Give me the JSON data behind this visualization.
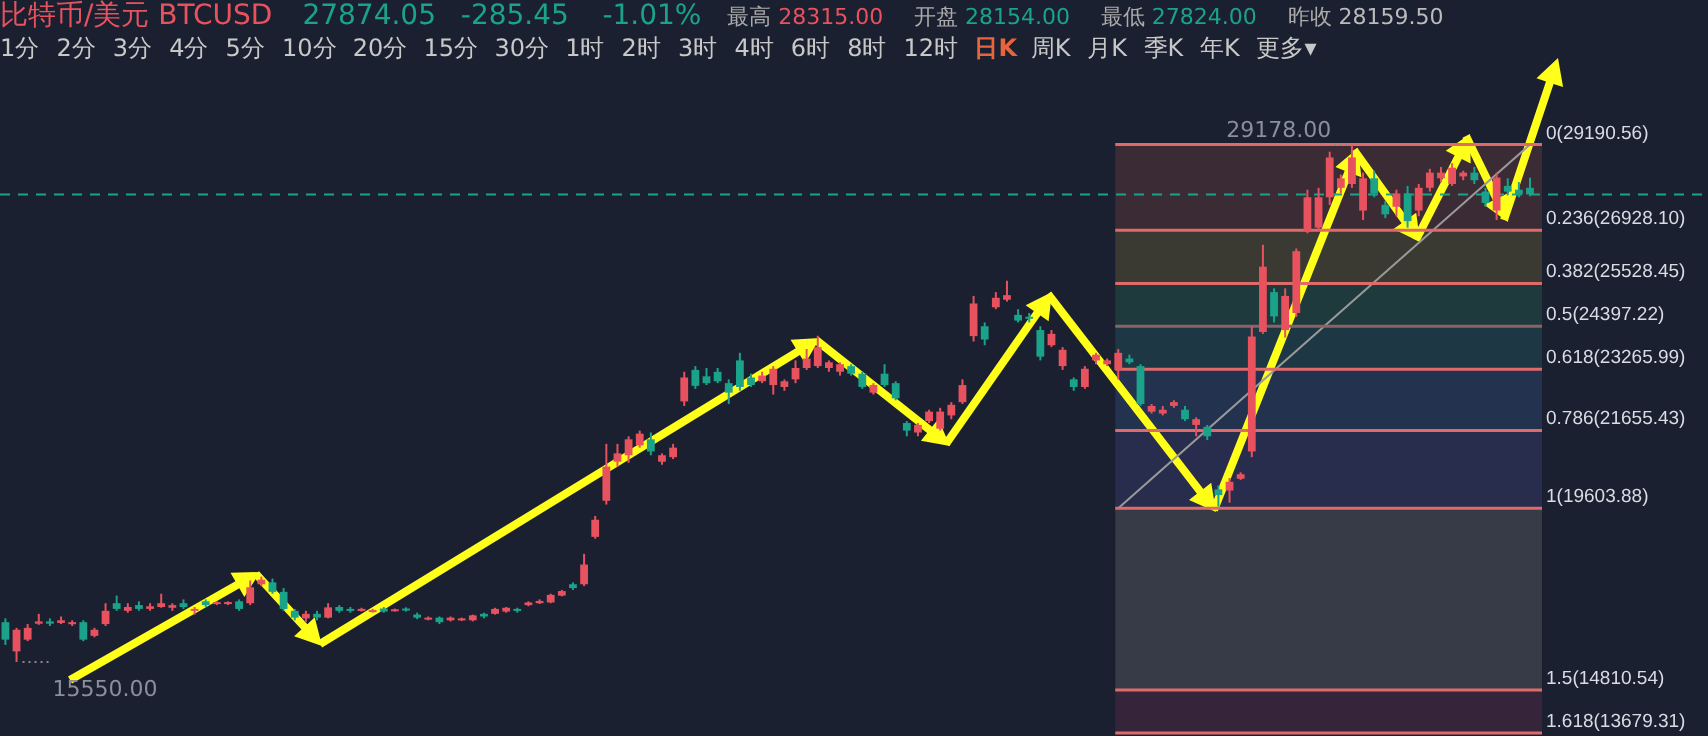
{
  "chart_data": {
    "type": "candlestick",
    "title": "比特币/美元 BTCUSD",
    "categories": [
      null,
      null,
      null,
      null,
      null,
      null,
      null,
      null,
      null,
      null,
      null,
      null,
      null,
      null,
      null,
      null,
      null,
      null,
      null,
      null,
      null,
      null,
      null,
      null,
      null,
      null,
      null,
      null,
      null,
      null,
      null,
      null,
      null,
      null,
      null,
      null,
      null,
      null,
      null,
      null,
      null,
      null,
      null,
      null,
      null,
      null,
      null,
      null,
      null,
      null,
      null,
      null,
      null,
      null,
      null,
      null,
      null,
      null,
      null,
      null,
      null,
      null,
      null,
      null,
      null,
      null,
      null,
      null,
      null,
      null,
      null,
      null,
      null,
      null,
      null,
      null,
      null,
      null,
      null,
      null,
      null,
      null,
      null,
      null,
      null,
      null,
      null,
      null,
      null,
      null,
      null,
      null,
      null,
      null,
      null,
      null,
      null,
      null,
      null,
      null,
      null,
      null,
      null,
      null,
      null,
      null,
      null,
      null,
      null,
      null,
      null,
      null,
      null,
      null,
      null,
      null,
      null,
      null,
      null,
      null,
      null,
      null,
      null,
      null,
      null,
      null,
      null,
      null,
      null,
      null,
      null,
      null,
      null,
      null,
      null,
      null,
      null,
      null
    ],
    "ohlc": [
      [
        16600,
        16700,
        16000,
        16140
      ],
      [
        15830,
        16450,
        15550,
        16400
      ],
      [
        16140,
        16550,
        16100,
        16450
      ],
      [
        16560,
        16820,
        16530,
        16620
      ],
      [
        16620,
        16700,
        16500,
        16560
      ],
      [
        16580,
        16750,
        16550,
        16650
      ],
      [
        16560,
        16650,
        16500,
        16600
      ],
      [
        16600,
        16650,
        16100,
        16140
      ],
      [
        16240,
        16450,
        16200,
        16400
      ],
      [
        16550,
        17100,
        16500,
        16900
      ],
      [
        17100,
        17300,
        16900,
        16950
      ],
      [
        16900,
        17100,
        16850,
        17000
      ],
      [
        17050,
        17150,
        16900,
        16950
      ],
      [
        16950,
        17100,
        16900,
        17020
      ],
      [
        17000,
        17350,
        16980,
        17100
      ],
      [
        16980,
        17100,
        16900,
        17050
      ],
      [
        17100,
        17200,
        16950,
        17000
      ],
      [
        16900,
        17000,
        16800,
        16950
      ],
      [
        17150,
        17200,
        17000,
        17050
      ],
      [
        17080,
        17150,
        17050,
        17130
      ],
      [
        17080,
        17150,
        17050,
        17130
      ],
      [
        17150,
        17200,
        16900,
        16950
      ],
      [
        17100,
        17700,
        17050,
        17520
      ],
      [
        17600,
        17800,
        17550,
        17720
      ],
      [
        17650,
        17750,
        17350,
        17400
      ],
      [
        17400,
        17500,
        16900,
        16950
      ],
      [
        16900,
        16950,
        16650,
        16720
      ],
      [
        16700,
        16900,
        16600,
        16820
      ],
      [
        16820,
        16900,
        16650,
        16720
      ],
      [
        16720,
        17100,
        16700,
        16990
      ],
      [
        17000,
        17050,
        16850,
        16900
      ],
      [
        16950,
        17000,
        16850,
        16900
      ],
      [
        16900,
        16980,
        16880,
        16950
      ],
      [
        16880,
        16950,
        16850,
        16920
      ],
      [
        16960,
        17000,
        16850,
        16880
      ],
      [
        16900,
        16960,
        16880,
        16940
      ],
      [
        16960,
        16990,
        16880,
        16920
      ],
      [
        16800,
        16850,
        16680,
        16720
      ],
      [
        16680,
        16750,
        16650,
        16720
      ],
      [
        16720,
        16750,
        16550,
        16600
      ],
      [
        16650,
        16750,
        16620,
        16720
      ],
      [
        16650,
        16720,
        16630,
        16700
      ],
      [
        16650,
        16800,
        16620,
        16780
      ],
      [
        16820,
        16850,
        16700,
        16750
      ],
      [
        16820,
        16980,
        16800,
        16950
      ],
      [
        16880,
        17000,
        16850,
        16980
      ],
      [
        16950,
        16980,
        16850,
        16900
      ],
      [
        17050,
        17150,
        17020,
        17120
      ],
      [
        17100,
        17200,
        17080,
        17160
      ],
      [
        17120,
        17350,
        17100,
        17320
      ],
      [
        17300,
        17450,
        17280,
        17420
      ],
      [
        17600,
        17650,
        17450,
        17500
      ],
      [
        17600,
        18400,
        17550,
        18120
      ],
      [
        18850,
        19400,
        18800,
        19300
      ],
      [
        19800,
        21300,
        19700,
        20700
      ],
      [
        20830,
        21300,
        20700,
        21050
      ],
      [
        21000,
        21500,
        20800,
        21420
      ],
      [
        21260,
        21650,
        21200,
        21570
      ],
      [
        21420,
        21600,
        21000,
        21100
      ],
      [
        20830,
        21050,
        20750,
        21000
      ],
      [
        20950,
        21300,
        20900,
        21200
      ],
      [
        22420,
        23200,
        22300,
        23050
      ],
      [
        23250,
        23350,
        22750,
        22830
      ],
      [
        23080,
        23300,
        22850,
        22900
      ],
      [
        23200,
        23300,
        22900,
        22950
      ],
      [
        22900,
        23000,
        22350,
        22650
      ],
      [
        23500,
        23700,
        22700,
        22800
      ],
      [
        23050,
        23150,
        22800,
        22850
      ],
      [
        22950,
        23200,
        22900,
        23100
      ],
      [
        22850,
        23350,
        22600,
        23280
      ],
      [
        22800,
        23000,
        22700,
        22950
      ],
      [
        23000,
        23500,
        22900,
        23300
      ],
      [
        23300,
        23800,
        23250,
        23550
      ],
      [
        23350,
        24150,
        23300,
        23850
      ],
      [
        23300,
        23500,
        23200,
        23450
      ],
      [
        23200,
        23450,
        23100,
        23400
      ],
      [
        23350,
        23400,
        23100,
        23150
      ],
      [
        23150,
        23200,
        22750,
        22800
      ],
      [
        22650,
        22900,
        22600,
        22850
      ],
      [
        23150,
        23400,
        22800,
        22850
      ],
      [
        22900,
        22950,
        22450,
        22500
      ],
      [
        21850,
        21900,
        21500,
        21650
      ],
      [
        21600,
        21850,
        21500,
        21800
      ],
      [
        21900,
        22200,
        21850,
        22150
      ],
      [
        21700,
        22250,
        21650,
        22150
      ],
      [
        22050,
        22400,
        21950,
        22330
      ],
      [
        22400,
        23000,
        22350,
        22850
      ],
      [
        24140,
        25200,
        24000,
        25000
      ],
      [
        24400,
        24500,
        23900,
        24050
      ],
      [
        24900,
        25300,
        24850,
        25150
      ],
      [
        25100,
        25600,
        25050,
        25220
      ],
      [
        24700,
        24850,
        24500,
        24550
      ],
      [
        24650,
        24750,
        24500,
        24600
      ],
      [
        24300,
        24400,
        23500,
        23600
      ],
      [
        23900,
        24300,
        23850,
        24200
      ],
      [
        23350,
        23850,
        23250,
        23780
      ],
      [
        23000,
        23050,
        22700,
        22800
      ],
      [
        22800,
        23350,
        22750,
        23280
      ],
      [
        23500,
        23700,
        23400,
        23650
      ],
      [
        23400,
        23550,
        23350,
        23500
      ],
      [
        23250,
        23800,
        23000,
        23700
      ],
      [
        23550,
        23650,
        23400,
        23450
      ],
      [
        23350,
        23400,
        22300,
        22350
      ],
      [
        22150,
        22350,
        22100,
        22300
      ],
      [
        22100,
        22300,
        22050,
        22200
      ],
      [
        22300,
        22450,
        22250,
        22400
      ],
      [
        22200,
        22300,
        21900,
        21950
      ],
      [
        21800,
        22000,
        21500,
        21950
      ],
      [
        21750,
        21800,
        21400,
        21500
      ],
      [
        20100,
        20200,
        19650,
        19950
      ],
      [
        20070,
        20400,
        19750,
        20300
      ],
      [
        20380,
        20550,
        20350,
        20500
      ],
      [
        21100,
        24400,
        20950,
        24130
      ],
      [
        24250,
        26550,
        24200,
        25970
      ],
      [
        25300,
        25400,
        24500,
        24660
      ],
      [
        24300,
        25400,
        24100,
        25200
      ],
      [
        24750,
        26450,
        24650,
        26380
      ],
      [
        26900,
        28000,
        26850,
        27800
      ],
      [
        27000,
        28050,
        26900,
        27800
      ],
      [
        27800,
        29000,
        27600,
        28850
      ],
      [
        28050,
        28400,
        27900,
        28300
      ],
      [
        28150,
        29178,
        28050,
        28850
      ],
      [
        27450,
        28450,
        27200,
        28300
      ],
      [
        28300,
        28500,
        27800,
        27900
      ],
      [
        27600,
        27700,
        27250,
        27350
      ],
      [
        27550,
        28000,
        27300,
        27900
      ],
      [
        27900,
        28100,
        27000,
        27170
      ],
      [
        27450,
        28150,
        27300,
        28050
      ],
      [
        28050,
        28550,
        27950,
        28450
      ],
      [
        28300,
        28600,
        28200,
        28450
      ],
      [
        28150,
        28700,
        28100,
        28580
      ],
      [
        28350,
        28500,
        28250,
        28450
      ],
      [
        28450,
        28600,
        28150,
        28250
      ],
      [
        27950,
        28050,
        27550,
        27650
      ],
      [
        27450,
        28450,
        27200,
        28320
      ],
      [
        28100,
        28300,
        27850,
        27950
      ],
      [
        28000,
        28200,
        27800,
        27880
      ],
      [
        28050,
        28315,
        27824,
        27874.05
      ]
    ],
    "colors": [
      "#1aa38a",
      "#e8525f",
      "#e8525f",
      "#e8525f",
      "#1aa38a",
      "#e8525f",
      "#e8525f",
      "#1aa38a",
      "#e8525f",
      "#e8525f",
      "#1aa38a",
      "#e8525f",
      "#1aa38a",
      "#e8525f",
      "#e8525f",
      "#e8525f",
      "#1aa38a",
      "#e8525f",
      "#1aa38a",
      "#e8525f",
      "#e8525f",
      "#1aa38a",
      "#e8525f",
      "#e8525f",
      "#1aa38a",
      "#1aa38a",
      "#1aa38a",
      "#e8525f",
      "#1aa38a",
      "#e8525f",
      "#1aa38a",
      "#1aa38a",
      "#e8525f",
      "#e8525f",
      "#1aa38a",
      "#e8525f",
      "#1aa38a",
      "#1aa38a",
      "#e8525f",
      "#1aa38a",
      "#e8525f",
      "#e8525f",
      "#e8525f",
      "#1aa38a",
      "#e8525f",
      "#e8525f",
      "#1aa38a",
      "#e8525f",
      "#e8525f",
      "#e8525f",
      "#e8525f",
      "#1aa38a",
      "#e8525f",
      "#e8525f",
      "#e8525f",
      "#e8525f",
      "#e8525f",
      "#e8525f",
      "#1aa38a",
      "#e8525f",
      "#e8525f",
      "#e8525f",
      "#1aa38a",
      "#1aa38a",
      "#1aa38a",
      "#1aa38a",
      "#1aa38a",
      "#1aa38a",
      "#e8525f",
      "#e8525f",
      "#e8525f",
      "#e8525f",
      "#e8525f",
      "#e8525f",
      "#e8525f",
      "#e8525f",
      "#1aa38a",
      "#1aa38a",
      "#e8525f",
      "#1aa38a",
      "#1aa38a",
      "#1aa38a",
      "#e8525f",
      "#e8525f",
      "#e8525f",
      "#e8525f",
      "#e8525f",
      "#e8525f",
      "#1aa38a",
      "#e8525f",
      "#e8525f",
      "#1aa38a",
      "#1aa38a",
      "#1aa38a",
      "#e8525f",
      "#e8525f",
      "#1aa38a",
      "#e8525f",
      "#e8525f",
      "#e8525f",
      "#e8525f",
      "#1aa38a",
      "#1aa38a",
      "#e8525f",
      "#e8525f",
      "#e8525f",
      "#1aa38a",
      "#e8525f",
      "#1aa38a",
      "#1aa38a",
      "#e8525f",
      "#e8525f",
      "#e8525f",
      "#e8525f",
      "#1aa38a",
      "#e8525f",
      "#e8525f",
      "#e8525f",
      "#e8525f",
      "#e8525f",
      "#e8525f",
      "#e8525f",
      "#e8525f",
      "#1aa38a",
      "#1aa38a",
      "#e8525f",
      "#1aa38a",
      "#e8525f",
      "#e8525f",
      "#e8525f",
      "#e8525f",
      "#e8525f",
      "#1aa38a",
      "#1aa38a",
      "#e8525f",
      "#1aa38a",
      "#1aa38a",
      "#1aa38a"
    ],
    "series": [
      {
        "type": "line",
        "color": "#9a9a9a",
        "values": [
          null,
          null,
          null,
          null,
          null,
          null,
          null,
          null,
          null,
          null,
          null,
          null,
          null,
          null,
          null,
          null,
          null,
          null,
          null,
          null,
          null,
          null,
          null,
          null,
          null,
          null,
          null,
          null,
          null,
          null,
          null,
          null,
          null,
          null,
          null,
          null,
          null,
          null,
          null,
          null,
          null,
          null,
          null,
          null,
          null,
          null,
          null,
          null,
          null,
          null,
          null,
          null,
          null,
          null,
          null,
          null,
          null,
          null,
          null,
          null,
          null,
          null,
          null,
          null,
          null,
          null,
          null,
          null,
          null,
          null,
          null,
          null,
          null,
          null,
          null,
          null,
          null,
          null,
          null,
          null,
          null,
          null,
          null,
          null,
          null,
          null,
          null,
          null,
          null,
          null,
          null,
          null,
          null,
          null,
          null,
          null,
          null,
          null,
          null,
          null,
          19603.88,
          null,
          null,
          null,
          null,
          null,
          null,
          null,
          null,
          null,
          null,
          null,
          null,
          null,
          null,
          null,
          null,
          null,
          null,
          null,
          null,
          null,
          null,
          null,
          null,
          null,
          null,
          null,
          null,
          null,
          null,
          null,
          null,
          null,
          null,
          null,
          null,
          29190.56
        ]
      }
    ],
    "ylim": [
      13600,
      33000
    ],
    "bands": [
      {
        "axis": "y",
        "from": 29190.56,
        "to": 26928.1,
        "color": "#3a2b34"
      },
      {
        "axis": "y",
        "from": 26928.1,
        "to": 25528.45,
        "color": "#3a3a32"
      },
      {
        "axis": "y",
        "from": 25528.45,
        "to": 24397.22,
        "color": "#1f3a3c"
      },
      {
        "axis": "y",
        "from": 24397.22,
        "to": 23265.99,
        "color": "#1d3744"
      },
      {
        "axis": "y",
        "from": 23265.99,
        "to": 21655.43,
        "color": "#22324f"
      },
      {
        "axis": "y",
        "from": 21655.43,
        "to": 19603.88,
        "color": "#292d4d"
      },
      {
        "axis": "y",
        "from": 19603.88,
        "to": 14810.54,
        "color": "#363b47"
      },
      {
        "axis": "y",
        "from": 14810.54,
        "to": 13679.31,
        "color": "#36243a"
      }
    ],
    "ref_lines": [
      {
        "axis": "y",
        "value": 29190.56,
        "label": "0(29190.56)",
        "color": "#e06a6a"
      },
      {
        "axis": "y",
        "value": 26928.1,
        "label": "0.236(26928.10)",
        "color": "#e06a6a"
      },
      {
        "axis": "y",
        "value": 25528.45,
        "label": "0.382(25528.45)",
        "color": "#e06a6a"
      },
      {
        "axis": "y",
        "value": 24397.22,
        "label": "0.5(24397.22)",
        "color": "#8a6464"
      },
      {
        "axis": "y",
        "value": 23265.99,
        "label": "0.618(23265.99)",
        "color": "#e06a6a"
      },
      {
        "axis": "y",
        "value": 21655.43,
        "label": "0.786(21655.43)",
        "color": "#e06a6a"
      },
      {
        "axis": "y",
        "value": 19603.88,
        "label": "1(19603.88)",
        "color": "#e06a6a"
      },
      {
        "axis": "y",
        "value": 14810.54,
        "label": "1.5(14810.54)",
        "color": "#e06a6a"
      },
      {
        "axis": "y",
        "value": 13679.31,
        "label": "1.618(13679.31)",
        "color": "#e06a6a"
      },
      {
        "axis": "y",
        "value": 27874.05,
        "color": "#1aa38a",
        "line_style": "dashed"
      }
    ],
    "annotations": [
      "27874.05",
      "-285.45",
      "-1.01%",
      "最高 28315.00",
      "开盘 28154.00",
      "最低 27824.00",
      "昨收 28159.50",
      "1分",
      "2分",
      "3分",
      "4分",
      "5分",
      "10分",
      "20分",
      "15分",
      "30分",
      "1时",
      "2时",
      "3时",
      "4时",
      "6时",
      "8时",
      "12时",
      "日K",
      "周K",
      "月K",
      "季K",
      "年K",
      "更多▾",
      "15550.00",
      "29178.00"
    ]
  }
}
